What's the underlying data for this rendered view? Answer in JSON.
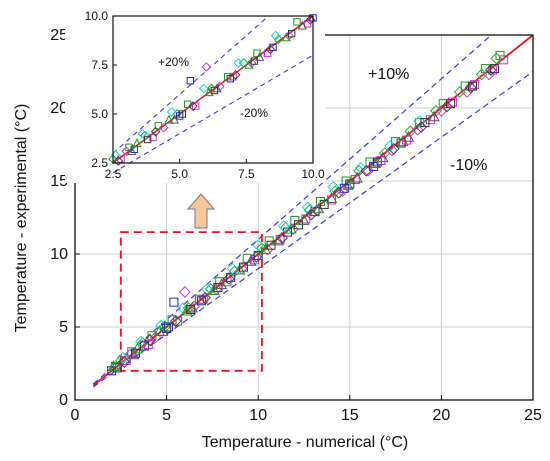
{
  "chart_data": [
    {
      "type": "scatter",
      "xlabel": "Temperature - numerical (°C)",
      "ylabel": "Temperature - experimental (°C)",
      "xlim": [
        0,
        25
      ],
      "ylim": [
        0,
        25
      ],
      "xticks": [
        "0",
        "5",
        "10",
        "15",
        "20",
        "25"
      ],
      "yticks": [
        "0",
        "5",
        "10",
        "15",
        "20",
        "25"
      ],
      "grid": true,
      "annotations": [
        "+10%",
        "-10%"
      ],
      "colors": {
        "ideal": "#e8141c",
        "band": "#3a3ae6",
        "zoom_box": "#e8141c",
        "arrow_fill": "#f7c79c",
        "arrow_stroke": "#777777"
      },
      "reference_lines": [
        {
          "label": "ideal",
          "slope": 1.0
        },
        {
          "label": "+10%",
          "slope": 1.1
        },
        {
          "label": "-10%",
          "slope": 0.9
        }
      ],
      "zoom_region": {
        "x": [
          2.5,
          10.2
        ],
        "y": [
          2,
          11.5
        ]
      },
      "series": [
        {
          "marker": "square",
          "color": "#1f9a1f",
          "points": [
            [
              2.2,
              2.3
            ],
            [
              3.1,
              3.3
            ],
            [
              4.2,
              4.4
            ],
            [
              5.3,
              5.5
            ],
            [
              6.8,
              6.9
            ],
            [
              7.9,
              8.1
            ],
            [
              9.4,
              9.7
            ],
            [
              10.6,
              10.9
            ],
            [
              12.0,
              12.3
            ],
            [
              13.4,
              13.6
            ],
            [
              14.8,
              15.0
            ],
            [
              16.1,
              16.3
            ],
            [
              17.5,
              17.7
            ],
            [
              18.8,
              19.0
            ],
            [
              20.1,
              20.3
            ],
            [
              21.3,
              21.5
            ],
            [
              22.4,
              22.7
            ],
            [
              23.2,
              23.6
            ]
          ]
        },
        {
          "marker": "diamond",
          "color": "#22b422",
          "points": [
            [
              2.5,
              2.7
            ],
            [
              3.7,
              3.9
            ],
            [
              4.9,
              5.0
            ],
            [
              6.2,
              6.3
            ],
            [
              7.4,
              7.6
            ],
            [
              8.7,
              8.8
            ],
            [
              10.2,
              10.4
            ],
            [
              11.5,
              11.8
            ],
            [
              12.8,
              13.0
            ],
            [
              14.2,
              14.3
            ],
            [
              15.5,
              15.7
            ],
            [
              16.9,
              16.9
            ],
            [
              18.3,
              18.4
            ],
            [
              19.7,
              19.8
            ],
            [
              21.0,
              21.1
            ],
            [
              22.2,
              22.3
            ],
            [
              23.0,
              23.4
            ]
          ]
        },
        {
          "marker": "square",
          "color": "#e31ee3",
          "points": [
            [
              2.8,
              2.7
            ],
            [
              4.0,
              3.8
            ],
            [
              5.6,
              5.4
            ],
            [
              7.0,
              6.9
            ],
            [
              8.3,
              8.1
            ],
            [
              9.8,
              9.6
            ],
            [
              11.2,
              11.0
            ],
            [
              12.6,
              12.4
            ],
            [
              14.0,
              13.7
            ],
            [
              15.3,
              15.1
            ],
            [
              16.7,
              16.4
            ],
            [
              18.1,
              17.8
            ],
            [
              19.4,
              19.2
            ],
            [
              20.6,
              20.4
            ],
            [
              21.8,
              21.6
            ],
            [
              22.8,
              22.6
            ],
            [
              23.4,
              23.3
            ]
          ]
        },
        {
          "marker": "diamond",
          "color": "#d23bd2",
          "points": [
            [
              3.0,
              3.1
            ],
            [
              4.4,
              4.3
            ],
            [
              6.0,
              7.4
            ],
            [
              6.5,
              6.4
            ],
            [
              7.7,
              7.6
            ],
            [
              9.1,
              9.0
            ],
            [
              10.5,
              10.3
            ],
            [
              11.9,
              11.7
            ],
            [
              13.2,
              13.0
            ],
            [
              14.6,
              14.3
            ],
            [
              16.0,
              15.7
            ],
            [
              17.3,
              17.1
            ],
            [
              18.7,
              18.5
            ],
            [
              20.0,
              19.8
            ],
            [
              21.4,
              21.1
            ],
            [
              22.6,
              22.3
            ]
          ]
        },
        {
          "marker": "square",
          "color": "#2222cc",
          "points": [
            [
              2.0,
              2.0
            ],
            [
              3.3,
              3.2
            ],
            [
              5.0,
              4.9
            ],
            [
              5.4,
              6.7
            ],
            [
              6.9,
              6.8
            ],
            [
              8.5,
              8.4
            ],
            [
              10.0,
              9.9
            ],
            [
              11.6,
              11.5
            ],
            [
              13.1,
              12.9
            ],
            [
              14.7,
              14.5
            ],
            [
              16.3,
              16.0
            ]
          ]
        },
        {
          "marker": "diamond",
          "color": "#19d6d6",
          "points": [
            [
              2.6,
              2.9
            ],
            [
              3.6,
              4.0
            ],
            [
              4.7,
              5.1
            ],
            [
              5.9,
              6.3
            ],
            [
              7.2,
              7.6
            ],
            [
              8.6,
              9.0
            ],
            [
              10.0,
              10.6
            ],
            [
              11.4,
              11.9
            ],
            [
              12.7,
              13.2
            ],
            [
              14.1,
              14.6
            ],
            [
              15.6,
              15.9
            ],
            [
              17.2,
              17.4
            ],
            [
              18.8,
              19.1
            ]
          ]
        },
        {
          "marker": "triangle",
          "color": "#1d9a1d",
          "points": [
            [
              2.1,
              2.3
            ],
            [
              3.4,
              3.5
            ],
            [
              4.6,
              4.7
            ],
            [
              6.1,
              6.1
            ],
            [
              7.6,
              7.5
            ],
            [
              9.0,
              8.9
            ],
            [
              10.4,
              10.3
            ],
            [
              11.8,
              11.7
            ],
            [
              13.3,
              13.1
            ],
            [
              14.9,
              14.7
            ],
            [
              16.4,
              16.2
            ],
            [
              17.9,
              17.7
            ]
          ]
        },
        {
          "marker": "square",
          "color": "#333333",
          "points": [
            [
              2.3,
              2.2
            ],
            [
              3.8,
              3.7
            ],
            [
              5.1,
              5.0
            ],
            [
              6.3,
              6.2
            ],
            [
              7.8,
              7.7
            ],
            [
              9.2,
              9.1
            ],
            [
              10.7,
              10.6
            ],
            [
              12.2,
              12.0
            ],
            [
              13.6,
              13.4
            ],
            [
              15.0,
              14.8
            ],
            [
              16.5,
              16.3
            ],
            [
              17.8,
              17.6
            ],
            [
              19.1,
              19.0
            ],
            [
              20.5,
              20.3
            ],
            [
              21.7,
              21.5
            ],
            [
              22.9,
              22.7
            ]
          ]
        },
        {
          "marker": "diamond",
          "color": "#444444",
          "points": [
            [
              2.7,
              2.6
            ],
            [
              4.1,
              4.1
            ],
            [
              5.5,
              5.4
            ],
            [
              7.1,
              7.0
            ],
            [
              8.4,
              8.3
            ],
            [
              9.9,
              9.8
            ],
            [
              11.3,
              11.1
            ],
            [
              12.9,
              12.7
            ],
            [
              14.4,
              14.2
            ],
            [
              15.9,
              15.7
            ],
            [
              17.4,
              17.2
            ],
            [
              18.9,
              18.7
            ],
            [
              20.3,
              20.1
            ],
            [
              21.6,
              21.4
            ],
            [
              22.7,
              22.6
            ]
          ]
        },
        {
          "marker": "triangle",
          "color": "#555555",
          "points": [
            [
              3.2,
              3.1
            ],
            [
              4.8,
              4.7
            ],
            [
              6.4,
              6.3
            ],
            [
              8.0,
              7.9
            ],
            [
              9.6,
              9.5
            ],
            [
              11.1,
              10.9
            ],
            [
              12.5,
              12.3
            ],
            [
              14.0,
              13.8
            ],
            [
              15.4,
              15.2
            ],
            [
              16.8,
              16.6
            ],
            [
              18.2,
              18.0
            ],
            [
              19.6,
              19.4
            ]
          ]
        }
      ]
    },
    {
      "type": "scatter",
      "role": "inset",
      "xlim": [
        2.5,
        10.0
      ],
      "ylim": [
        2.5,
        10.0
      ],
      "xticks": [
        "2.5",
        "5.0",
        "7.5",
        "10.0"
      ],
      "yticks": [
        "2.5",
        "5.0",
        "7.5",
        "10.0"
      ],
      "grid": false,
      "annotations": [
        "+20%",
        "-20%"
      ],
      "reference_lines": [
        {
          "label": "ideal",
          "slope": 1.0
        },
        {
          "label": "+20%",
          "slope": 1.2
        },
        {
          "label": "-20%",
          "slope": 0.8
        }
      ],
      "uses_main_series": true
    }
  ]
}
